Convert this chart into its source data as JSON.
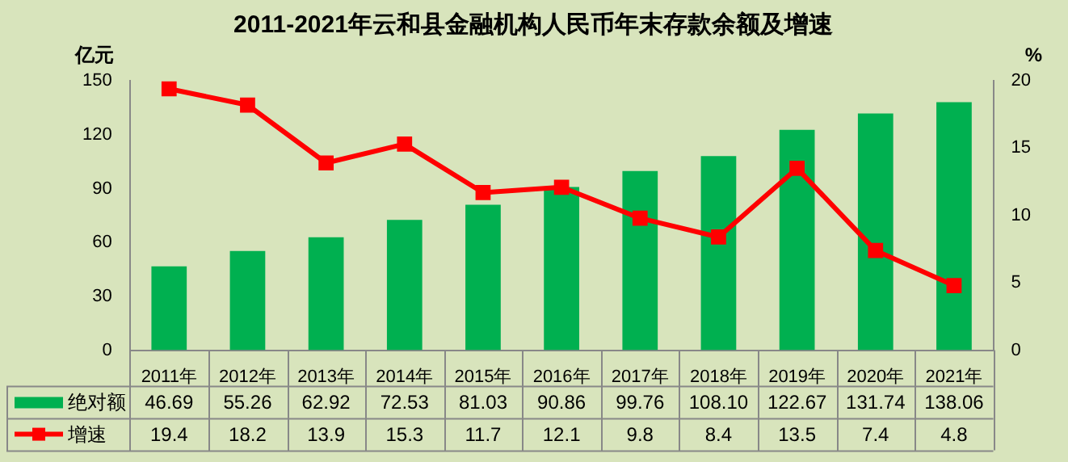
{
  "chart_data": {
    "type": "bar",
    "title": "2011-2021年云和县金融机构人民币年末存款余额及增速",
    "ylabel": "亿元",
    "y2label": "%",
    "categories": [
      "2011年",
      "2012年",
      "2013年",
      "2014年",
      "2015年",
      "2016年",
      "2017年",
      "2018年",
      "2019年",
      "2020年",
      "2021年"
    ],
    "series": [
      {
        "name": "绝对额",
        "color": "#00b050",
        "values": [
          46.69,
          55.26,
          62.92,
          72.53,
          81.03,
          90.86,
          99.76,
          108.1,
          122.67,
          131.74,
          138.06
        ],
        "value_labels": [
          "46.69",
          "55.26",
          "62.92",
          "72.53",
          "81.03",
          "90.86",
          "99.76",
          "108.10",
          "122.67",
          "131.74",
          "138.06"
        ]
      },
      {
        "name": "增速",
        "type": "line",
        "axis": "y2",
        "color": "#ff0000",
        "marker": "square",
        "values": [
          19.4,
          18.2,
          13.9,
          15.3,
          11.7,
          12.1,
          9.8,
          8.4,
          13.5,
          7.4,
          4.8
        ],
        "value_labels": [
          "19.4",
          "18.2",
          "13.9",
          "15.3",
          "11.7",
          "12.1",
          "9.8",
          "8.4",
          "13.5",
          "7.4",
          "4.8"
        ]
      }
    ],
    "ylim": [
      0,
      150
    ],
    "yticks": [
      0,
      30,
      60,
      90,
      120,
      150
    ],
    "y2lim": [
      0,
      20
    ],
    "y2ticks": [
      0,
      5,
      10,
      15,
      20
    ],
    "grid": false,
    "legend": "bottom"
  }
}
